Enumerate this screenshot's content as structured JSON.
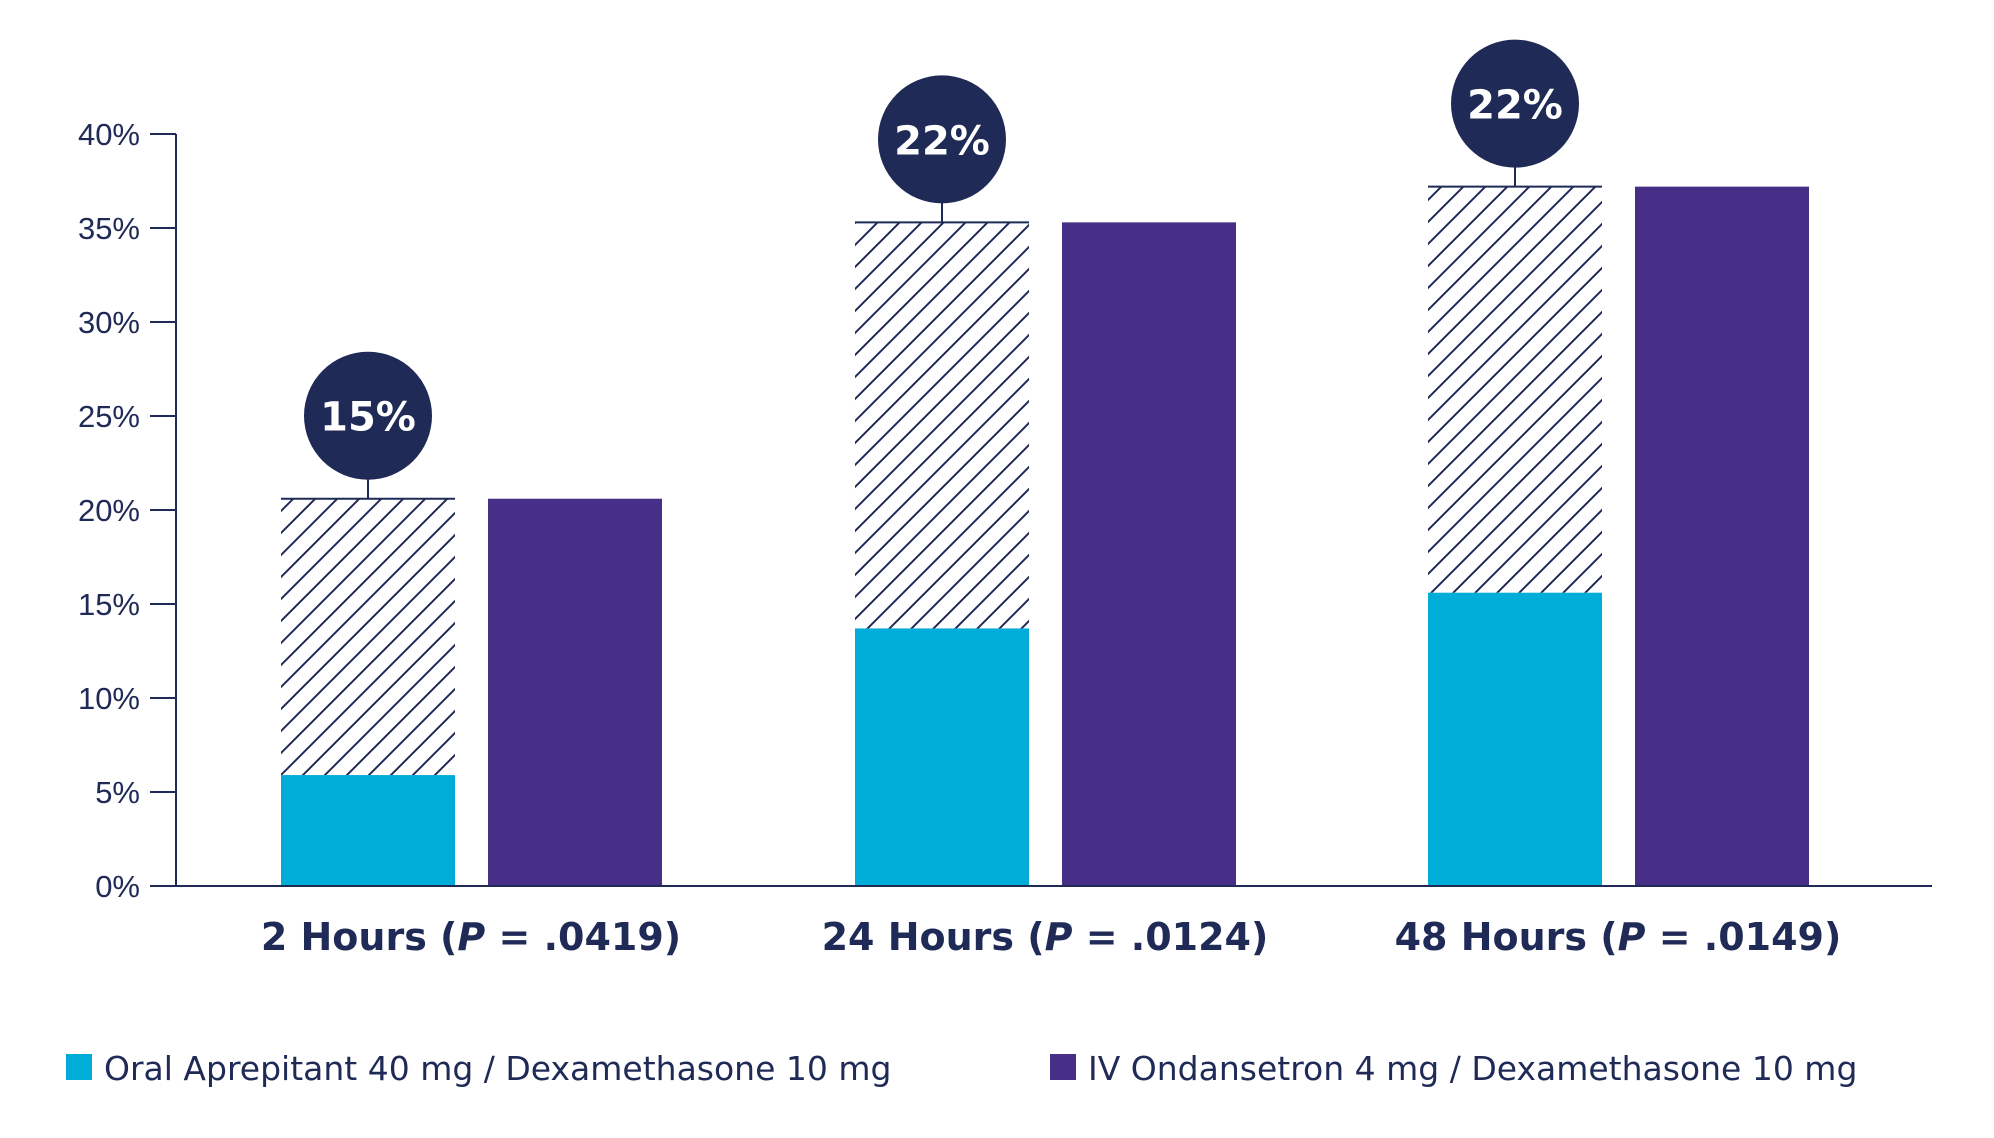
{
  "chart_data": {
    "type": "bar",
    "title": "",
    "xlabel": "",
    "ylabel": "",
    "ylim": [
      0,
      40
    ],
    "yticks": [
      0,
      5,
      10,
      15,
      20,
      25,
      30,
      35,
      40
    ],
    "ytick_labels": [
      "0%",
      "5%",
      "10%",
      "15%",
      "20%",
      "25%",
      "30%",
      "35%",
      "40%"
    ],
    "categories": [
      {
        "prefix": "2 Hours (",
        "p": "P",
        "suffix": " = .0419)"
      },
      {
        "prefix": "24 Hours (",
        "p": "P",
        "suffix": " = .0124)"
      },
      {
        "prefix": "48 Hours (",
        "p": "P",
        "suffix": " = .0149)"
      }
    ],
    "series": [
      {
        "name": "Oral Aprepitant 40 mg / Dexamethasone 10 mg",
        "color": "#00acd8",
        "values": [
          5.9,
          13.7,
          15.6
        ]
      },
      {
        "name": "IV Ondansetron 4 mg / Dexamethasone 10 mg",
        "color": "#472f87",
        "values": [
          20.6,
          35.3,
          37.2
        ]
      }
    ],
    "difference_labels": [
      "15%",
      "22%",
      "22%"
    ],
    "difference_pattern": "hatched",
    "bubble_color": "#1f2a57",
    "axis_color": "#1f2a57",
    "legend_position": "bottom"
  }
}
